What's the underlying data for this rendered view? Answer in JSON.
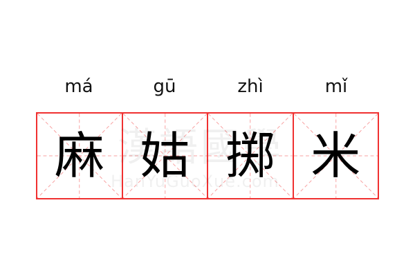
{
  "characters": [
    {
      "hanzi": "麻",
      "pinyin": "má"
    },
    {
      "hanzi": "姑",
      "pinyin": "gū"
    },
    {
      "hanzi": "掷",
      "pinyin": "zhì"
    },
    {
      "hanzi": "米",
      "pinyin": "mǐ"
    }
  ],
  "watermark": {
    "logo": "漢語國學",
    "site": "HanYuGuoXue.com"
  },
  "colors": {
    "border": "#f03030",
    "guide": "#f8a0a0"
  }
}
